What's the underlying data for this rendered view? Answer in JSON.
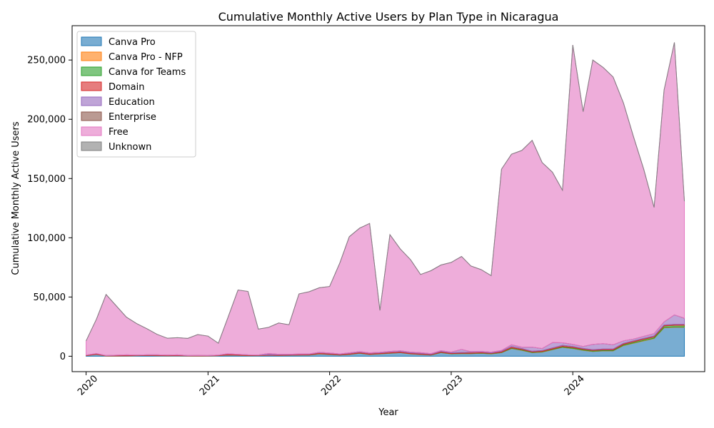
{
  "chart_data": {
    "type": "area",
    "stacked": true,
    "title": "Cumulative Monthly Active Users by Plan Type in Nicaragua",
    "xlabel": "Year",
    "ylabel": "Cumulative Monthly Active Users",
    "xlim": [
      "2019-11-20",
      "2025-01-31"
    ],
    "ylim": [
      -13000,
      279000
    ],
    "xticks": [
      {
        "label": "2020",
        "date": "2020-01-01"
      },
      {
        "label": "2021",
        "date": "2021-01-01"
      },
      {
        "label": "2022",
        "date": "2022-01-01"
      },
      {
        "label": "2023",
        "date": "2023-01-01"
      },
      {
        "label": "2024",
        "date": "2024-01-01"
      }
    ],
    "yticks": [
      {
        "label": "0",
        "value": 0
      },
      {
        "label": "50,000",
        "value": 50000
      },
      {
        "label": "100,000",
        "value": 100000
      },
      {
        "label": "150,000",
        "value": 150000
      },
      {
        "label": "200,000",
        "value": 200000
      },
      {
        "label": "250,000",
        "value": 250000
      }
    ],
    "grid": false,
    "legend_position": "top-left",
    "x": [
      "2020-01",
      "2020-02",
      "2020-03",
      "2020-04",
      "2020-05",
      "2020-06",
      "2020-07",
      "2020-08",
      "2020-09",
      "2020-10",
      "2020-11",
      "2020-12",
      "2021-01",
      "2021-02",
      "2021-03",
      "2021-04",
      "2021-05",
      "2021-06",
      "2021-07",
      "2021-08",
      "2021-09",
      "2021-10",
      "2021-11",
      "2021-12",
      "2022-01",
      "2022-02",
      "2022-03",
      "2022-04",
      "2022-05",
      "2022-06",
      "2022-07",
      "2022-08",
      "2022-09",
      "2022-10",
      "2022-11",
      "2022-12",
      "2023-01",
      "2023-02",
      "2023-03",
      "2023-04",
      "2023-05",
      "2023-06",
      "2023-07",
      "2023-08",
      "2023-09",
      "2023-10",
      "2023-11",
      "2023-12",
      "2024-01",
      "2024-02",
      "2024-03",
      "2024-04",
      "2024-05",
      "2024-06",
      "2024-07",
      "2024-08",
      "2024-09",
      "2024-10",
      "2024-11",
      "2024-12"
    ],
    "series": [
      {
        "name": "Canva Pro",
        "color": "#1f77b4",
        "values": [
          500,
          1500,
          200,
          200,
          300,
          500,
          600,
          500,
          400,
          500,
          200,
          200,
          200,
          500,
          1000,
          800,
          500,
          500,
          800,
          700,
          800,
          1000,
          1000,
          2000,
          1500,
          1000,
          1500,
          2500,
          1500,
          2000,
          2500,
          3000,
          2000,
          1500,
          1000,
          3000,
          2000,
          2200,
          2200,
          2500,
          2000,
          3000,
          6500,
          5000,
          3000,
          3500,
          5500,
          7500,
          6500,
          5000,
          4000,
          4500,
          4500,
          9000,
          11000,
          13000,
          15000,
          24000,
          24500,
          24500
        ]
      },
      {
        "name": "Canva Pro - NFP",
        "color": "#ff7f0e",
        "values": [
          100,
          100,
          100,
          100,
          100,
          100,
          100,
          100,
          100,
          100,
          100,
          100,
          100,
          100,
          100,
          100,
          100,
          100,
          100,
          100,
          100,
          100,
          100,
          100,
          100,
          100,
          100,
          100,
          100,
          100,
          100,
          100,
          100,
          100,
          100,
          100,
          100,
          100,
          100,
          100,
          100,
          100,
          200,
          200,
          200,
          200,
          200,
          200,
          200,
          200,
          200,
          200,
          200,
          300,
          300,
          300,
          300,
          300,
          300,
          300
        ]
      },
      {
        "name": "Canva for Teams",
        "color": "#2ca02c",
        "values": [
          0,
          0,
          0,
          0,
          0,
          0,
          0,
          0,
          0,
          0,
          0,
          0,
          0,
          0,
          0,
          0,
          0,
          0,
          0,
          0,
          0,
          0,
          100,
          100,
          100,
          100,
          100,
          100,
          100,
          100,
          100,
          100,
          100,
          100,
          100,
          200,
          200,
          200,
          200,
          300,
          300,
          300,
          500,
          500,
          400,
          400,
          500,
          600,
          700,
          700,
          700,
          700,
          700,
          800,
          900,
          1000,
          1000,
          1300,
          1300,
          1300
        ]
      },
      {
        "name": "Domain",
        "color": "#d62728",
        "values": [
          300,
          600,
          200,
          500,
          700,
          300,
          400,
          500,
          400,
          500,
          200,
          300,
          200,
          300,
          900,
          600,
          500,
          300,
          400,
          500,
          500,
          500,
          500,
          800,
          700,
          500,
          800,
          800,
          800,
          700,
          900,
          800,
          700,
          700,
          500,
          800,
          600,
          700,
          900,
          700,
          500,
          800,
          1000,
          800,
          600,
          700,
          800,
          900,
          800,
          700,
          600,
          700,
          700,
          800,
          800,
          800,
          800,
          800,
          800,
          800
        ]
      },
      {
        "name": "Education",
        "color": "#9467bd",
        "values": [
          100,
          100,
          100,
          100,
          100,
          100,
          100,
          100,
          100,
          100,
          100,
          100,
          100,
          100,
          100,
          100,
          100,
          200,
          1000,
          400,
          300,
          300,
          300,
          300,
          300,
          300,
          400,
          400,
          400,
          400,
          500,
          600,
          600,
          600,
          500,
          600,
          600,
          2500,
          500,
          500,
          600,
          700,
          1500,
          1200,
          3500,
          1700,
          4500,
          2200,
          1800,
          1600,
          4500,
          4500,
          3600,
          2100,
          1500,
          1700,
          2000,
          2600,
          8000,
          5200
        ]
      },
      {
        "name": "Enterprise",
        "color": "#8c564b",
        "values": [
          0,
          0,
          0,
          0,
          0,
          0,
          0,
          0,
          0,
          0,
          0,
          0,
          0,
          0,
          0,
          0,
          0,
          0,
          0,
          0,
          0,
          0,
          0,
          0,
          0,
          0,
          0,
          0,
          0,
          0,
          0,
          0,
          0,
          0,
          0,
          0,
          0,
          0,
          0,
          0,
          0,
          0,
          0,
          0,
          0,
          0,
          0,
          0,
          0,
          0,
          0,
          0,
          0,
          0,
          0,
          0,
          0,
          0,
          0,
          0
        ]
      },
      {
        "name": "Free",
        "color": "#e377c2",
        "values": [
          12000,
          29000,
          51500,
          41500,
          31800,
          26500,
          22100,
          17300,
          14200,
          14500,
          14500,
          17600,
          16400,
          10000,
          30000,
          54300,
          53500,
          21800,
          22000,
          26400,
          24900,
          50700,
          52500,
          54500,
          56200,
          77000,
          98000,
          104200,
          109200,
          35400,
          98500,
          86000,
          78000,
          66000,
          70000,
          72300,
          75700,
          78500,
          72300,
          69000,
          64500,
          153000,
          160800,
          166000,
          174500,
          157000,
          143800,
          128700,
          252700,
          198200,
          240000,
          233200,
          226000,
          200800,
          171000,
          141000,
          106500,
          195700,
          230000,
          98700
        ]
      },
      {
        "name": "Unknown",
        "color": "#7f7f7f",
        "values": [
          0,
          0,
          0,
          0,
          0,
          0,
          0,
          0,
          0,
          0,
          0,
          0,
          0,
          0,
          0,
          0,
          0,
          0,
          0,
          0,
          0,
          0,
          0,
          0,
          0,
          0,
          0,
          0,
          0,
          0,
          0,
          0,
          0,
          0,
          0,
          0,
          0,
          0,
          0,
          0,
          0,
          0,
          0,
          0,
          0,
          0,
          0,
          0,
          0,
          0,
          0,
          0,
          0,
          0,
          0,
          0,
          0,
          0,
          0,
          0
        ]
      }
    ]
  }
}
